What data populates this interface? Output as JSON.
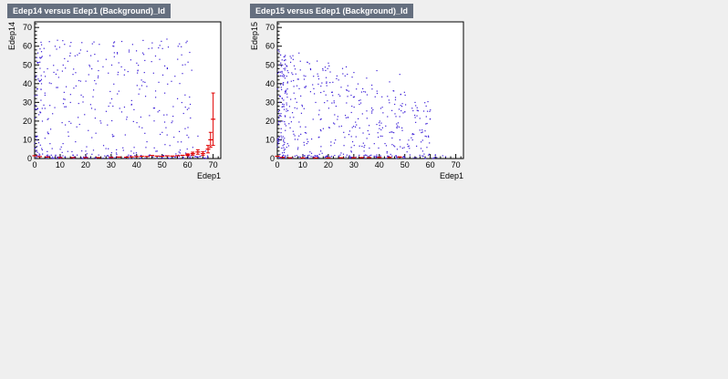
{
  "colors": {
    "background": "#efefef",
    "title_bg": "#656f7f",
    "title_fg": "#ffffff",
    "scatter": "#3c1fd7",
    "profile": "#e00000"
  },
  "chart_data": [
    {
      "type": "scatter",
      "title": "Edep14 versus Edep1 (Background)_Id",
      "xlabel": "Edep1",
      "ylabel": "Edep14",
      "xlim": [
        0,
        73
      ],
      "ylim": [
        0,
        73
      ],
      "xticks": [
        "0",
        "10",
        "20",
        "30",
        "40",
        "50",
        "60",
        "70"
      ],
      "yticks": [
        "0",
        "10",
        "20",
        "30",
        "40",
        "50",
        "60",
        "70"
      ],
      "grid": false,
      "series": [
        {
          "kind": "scatter",
          "note": "dense random scatter, heavier near Edep14≈0 and Edep1≈0",
          "points": [
            [
              2,
              54
            ],
            [
              5,
              48
            ],
            [
              8,
              60
            ],
            [
              11,
              63
            ],
            [
              13,
              52
            ],
            [
              15,
              45
            ],
            [
              18,
              58
            ],
            [
              22,
              55
            ],
            [
              25,
              47
            ],
            [
              28,
              53
            ],
            [
              31,
              60
            ],
            [
              34,
              49
            ],
            [
              37,
              57
            ],
            [
              40,
              51
            ],
            [
              43,
              46
            ],
            [
              46,
              59
            ],
            [
              49,
              53
            ],
            [
              52,
              48
            ],
            [
              55,
              44
            ],
            [
              58,
              50
            ],
            [
              4,
              35
            ],
            [
              9,
              38
            ],
            [
              14,
              30
            ],
            [
              19,
              33
            ],
            [
              24,
              40
            ],
            [
              29,
              28
            ],
            [
              33,
              36
            ],
            [
              38,
              31
            ],
            [
              42,
              39
            ],
            [
              47,
              27
            ],
            [
              51,
              35
            ],
            [
              56,
              32
            ],
            [
              61,
              29
            ],
            [
              3,
              20
            ],
            [
              7,
              24
            ],
            [
              12,
              18
            ],
            [
              17,
              22
            ],
            [
              21,
              15
            ],
            [
              26,
              19
            ],
            [
              31,
              12
            ],
            [
              36,
              21
            ],
            [
              41,
              17
            ],
            [
              45,
              23
            ],
            [
              50,
              14
            ],
            [
              54,
              20
            ],
            [
              59,
              16
            ],
            [
              64,
              12
            ],
            [
              6,
              8
            ],
            [
              10,
              5
            ],
            [
              16,
              9
            ],
            [
              20,
              4
            ],
            [
              27,
              7
            ],
            [
              32,
              3
            ],
            [
              39,
              6
            ],
            [
              44,
              9
            ],
            [
              48,
              4
            ],
            [
              53,
              7
            ],
            [
              57,
              3
            ],
            [
              62,
              6
            ],
            [
              67,
              4
            ]
          ]
        },
        {
          "kind": "profile",
          "note": "mean Edep14 per Edep1 bin with error bars",
          "points": [
            [
              0,
              1.5
            ],
            [
              2,
              1
            ],
            [
              5,
              0.8
            ],
            [
              10,
              0.5
            ],
            [
              15,
              0.5
            ],
            [
              20,
              0.5
            ],
            [
              25,
              0.5
            ],
            [
              30,
              0.6
            ],
            [
              33,
              0.8
            ],
            [
              36,
              0.7
            ],
            [
              38,
              0.9
            ],
            [
              40,
              1
            ],
            [
              42,
              1.2
            ],
            [
              44,
              1.1
            ],
            [
              46,
              1.6
            ],
            [
              48,
              1.3
            ],
            [
              50,
              1.2
            ],
            [
              52,
              1.4
            ],
            [
              54,
              1.3
            ],
            [
              56,
              1.5
            ],
            [
              58,
              1.7
            ],
            [
              60,
              2
            ],
            [
              62,
              2.6
            ],
            [
              64,
              3.5
            ],
            [
              66,
              2.6
            ],
            [
              68,
              5
            ],
            [
              69,
              10
            ],
            [
              70,
              21
            ]
          ],
          "errors": [
            [
              0,
              0
            ],
            [
              2,
              0
            ],
            [
              5,
              0
            ],
            [
              10,
              0
            ],
            [
              15,
              0
            ],
            [
              20,
              0
            ],
            [
              25,
              0
            ],
            [
              30,
              0
            ],
            [
              33,
              0
            ],
            [
              36,
              0
            ],
            [
              38,
              0
            ],
            [
              40,
              0
            ],
            [
              42,
              0
            ],
            [
              44,
              0
            ],
            [
              46,
              0
            ],
            [
              48,
              0
            ],
            [
              50,
              0
            ],
            [
              52,
              0
            ],
            [
              54,
              0
            ],
            [
              56,
              0
            ],
            [
              58,
              0
            ],
            [
              60,
              0.5
            ],
            [
              62,
              0.8
            ],
            [
              64,
              1.2
            ],
            [
              66,
              1
            ],
            [
              68,
              2
            ],
            [
              69,
              4
            ],
            [
              70,
              14
            ]
          ]
        }
      ]
    },
    {
      "type": "scatter",
      "title": "Edep15 versus Edep1 (Background)_Id",
      "xlabel": "Edep1",
      "ylabel": "Edep15",
      "xlim": [
        0,
        73
      ],
      "ylim": [
        0,
        73
      ],
      "xticks": [
        "0",
        "10",
        "20",
        "30",
        "40",
        "50",
        "60",
        "70"
      ],
      "yticks": [
        "0",
        "10",
        "20",
        "30",
        "40",
        "50",
        "60",
        "70"
      ],
      "grid": false,
      "series": [
        {
          "kind": "scatter",
          "note": "dense random scatter, heavier at low Edep1, thinning toward Edep1≈60",
          "points": [
            [
              2,
              50
            ],
            [
              6,
              45
            ],
            [
              9,
              52
            ],
            [
              13,
              48
            ],
            [
              16,
              44
            ],
            [
              20,
              51
            ],
            [
              24,
              42
            ],
            [
              27,
              49
            ],
            [
              30,
              46
            ],
            [
              35,
              43
            ],
            [
              39,
              47
            ],
            [
              44,
              41
            ],
            [
              48,
              45
            ],
            [
              3,
              35
            ],
            [
              7,
              32
            ],
            [
              11,
              38
            ],
            [
              15,
              30
            ],
            [
              19,
              34
            ],
            [
              23,
              28
            ],
            [
              28,
              36
            ],
            [
              32,
              31
            ],
            [
              37,
              27
            ],
            [
              41,
              33
            ],
            [
              46,
              29
            ],
            [
              50,
              25
            ],
            [
              54,
              30
            ],
            [
              60,
              26
            ],
            [
              2,
              20
            ],
            [
              5,
              22
            ],
            [
              9,
              17
            ],
            [
              14,
              21
            ],
            [
              18,
              16
            ],
            [
              22,
              19
            ],
            [
              26,
              14
            ],
            [
              31,
              18
            ],
            [
              36,
              13
            ],
            [
              40,
              16
            ],
            [
              45,
              11
            ],
            [
              49,
              15
            ],
            [
              53,
              10
            ],
            [
              58,
              12
            ],
            [
              4,
              8
            ],
            [
              8,
              5
            ],
            [
              12,
              9
            ],
            [
              17,
              4
            ],
            [
              21,
              7
            ],
            [
              25,
              3
            ],
            [
              29,
              6
            ],
            [
              34,
              4
            ],
            [
              38,
              8
            ],
            [
              43,
              3
            ],
            [
              47,
              5
            ],
            [
              52,
              2
            ],
            [
              57,
              4
            ],
            [
              62,
              2
            ],
            [
              66,
              1
            ]
          ]
        },
        {
          "kind": "profile",
          "note": "mean Edep15 per Edep1 bin, nearly zero",
          "points": [
            [
              0,
              1.2
            ],
            [
              2,
              0.6
            ],
            [
              5,
              0.4
            ],
            [
              10,
              0.3
            ],
            [
              15,
              0.3
            ],
            [
              20,
              0.3
            ],
            [
              25,
              0.4
            ],
            [
              30,
              0.4
            ],
            [
              33,
              0.5
            ],
            [
              36,
              0.5
            ],
            [
              40,
              0.6
            ],
            [
              44,
              0.6
            ],
            [
              48,
              0.8
            ]
          ],
          "errors": [
            [
              0,
              0
            ],
            [
              2,
              0
            ],
            [
              5,
              0
            ],
            [
              10,
              0
            ],
            [
              15,
              0
            ],
            [
              20,
              0
            ],
            [
              25,
              0
            ],
            [
              30,
              0
            ],
            [
              33,
              0
            ],
            [
              36,
              0
            ],
            [
              40,
              0
            ],
            [
              44,
              0
            ],
            [
              48,
              0
            ]
          ]
        }
      ]
    }
  ]
}
